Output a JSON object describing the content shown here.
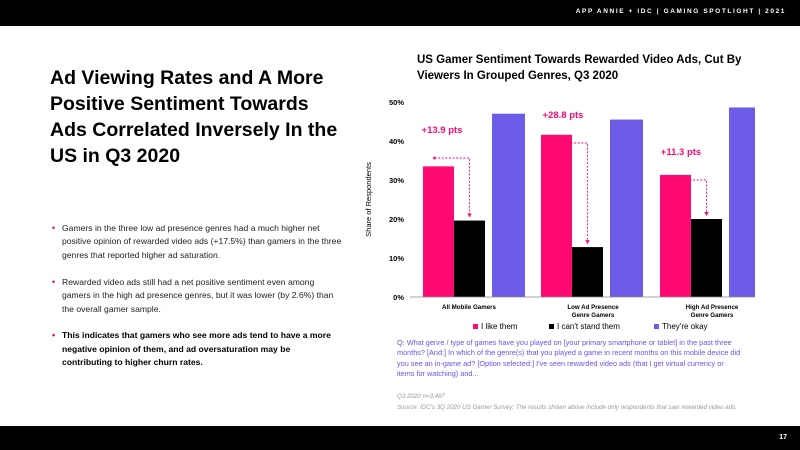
{
  "header": {
    "text": "APP ANNIE + IDC  |  GAMING SPOTLIGHT  |  2021"
  },
  "footer": {
    "page_number": "17"
  },
  "headline": "Ad Viewing Rates and A More Positive Sentiment Towards Ads Correlated Inversely In the US in Q3 2020",
  "bullets": [
    "Gamers in the three low ad presence genres had a much higher net positive opinion of rewarded video ads (+17.5%) than gamers in the three genres that reported higher ad saturation.",
    "Rewarded video ads still had a net positive sentiment even among gamers in the high ad presence genres, but it was lower (by 2.6%) than the overall gamer sample.",
    "This indicates that gamers who see more ads tend to have a more negative opinion of them, and ad oversaturation may be contributing to higher churn rates."
  ],
  "chart_title": "US Gamer Sentiment Towards Rewarded Video Ads, Cut By Viewers In Grouped Genres, Q3 2020",
  "chart_data": {
    "type": "bar",
    "title": "US Gamer Sentiment Towards Rewarded Video Ads, Cut By Viewers In Grouped Genres, Q3 2020",
    "categories": [
      [
        "All Mobile Gamers"
      ],
      [
        "Low Ad Presence",
        "Genre Gamers"
      ],
      [
        "High Ad Presence",
        "Genre Gamers"
      ]
    ],
    "series": [
      {
        "name": "I like them",
        "color": "#ff0a73",
        "values": [
          33.5,
          41.6,
          31.3
        ]
      },
      {
        "name": "I can't stand them",
        "color": "#000000",
        "values": [
          19.6,
          12.8,
          20.0
        ]
      },
      {
        "name": "They're okay",
        "color": "#6c5ce7",
        "values": [
          47.0,
          45.5,
          48.6
        ]
      }
    ],
    "annotations": [
      "+13.9 pts",
      "+28.8 pts",
      "+11.3 pts"
    ],
    "annotation_color": "#ff0a73",
    "ylabel": "Share of Respondents",
    "xlabel": "",
    "ylim": [
      0,
      50
    ],
    "yticks": [
      "0%",
      "10%",
      "20%",
      "30%",
      "40%",
      "50%"
    ],
    "legend_position": "bottom",
    "grid": false
  },
  "question": "Q: What genre / type of games have you played on [your primary smartphone or tablet] in the past three months? [And:] In which of the genre(s) that you played a game in recent months on this mobile device did you see an in-game ad? [Option selected:] I've seen rewarded video ads (that I get virtual currency or items for watching) and...",
  "base": "Q3 2020 n=3,487",
  "source": "Source: IDC's 3Q 2020 US Gamer Survey; The results shown above include only respondents that saw rewarded video ads."
}
